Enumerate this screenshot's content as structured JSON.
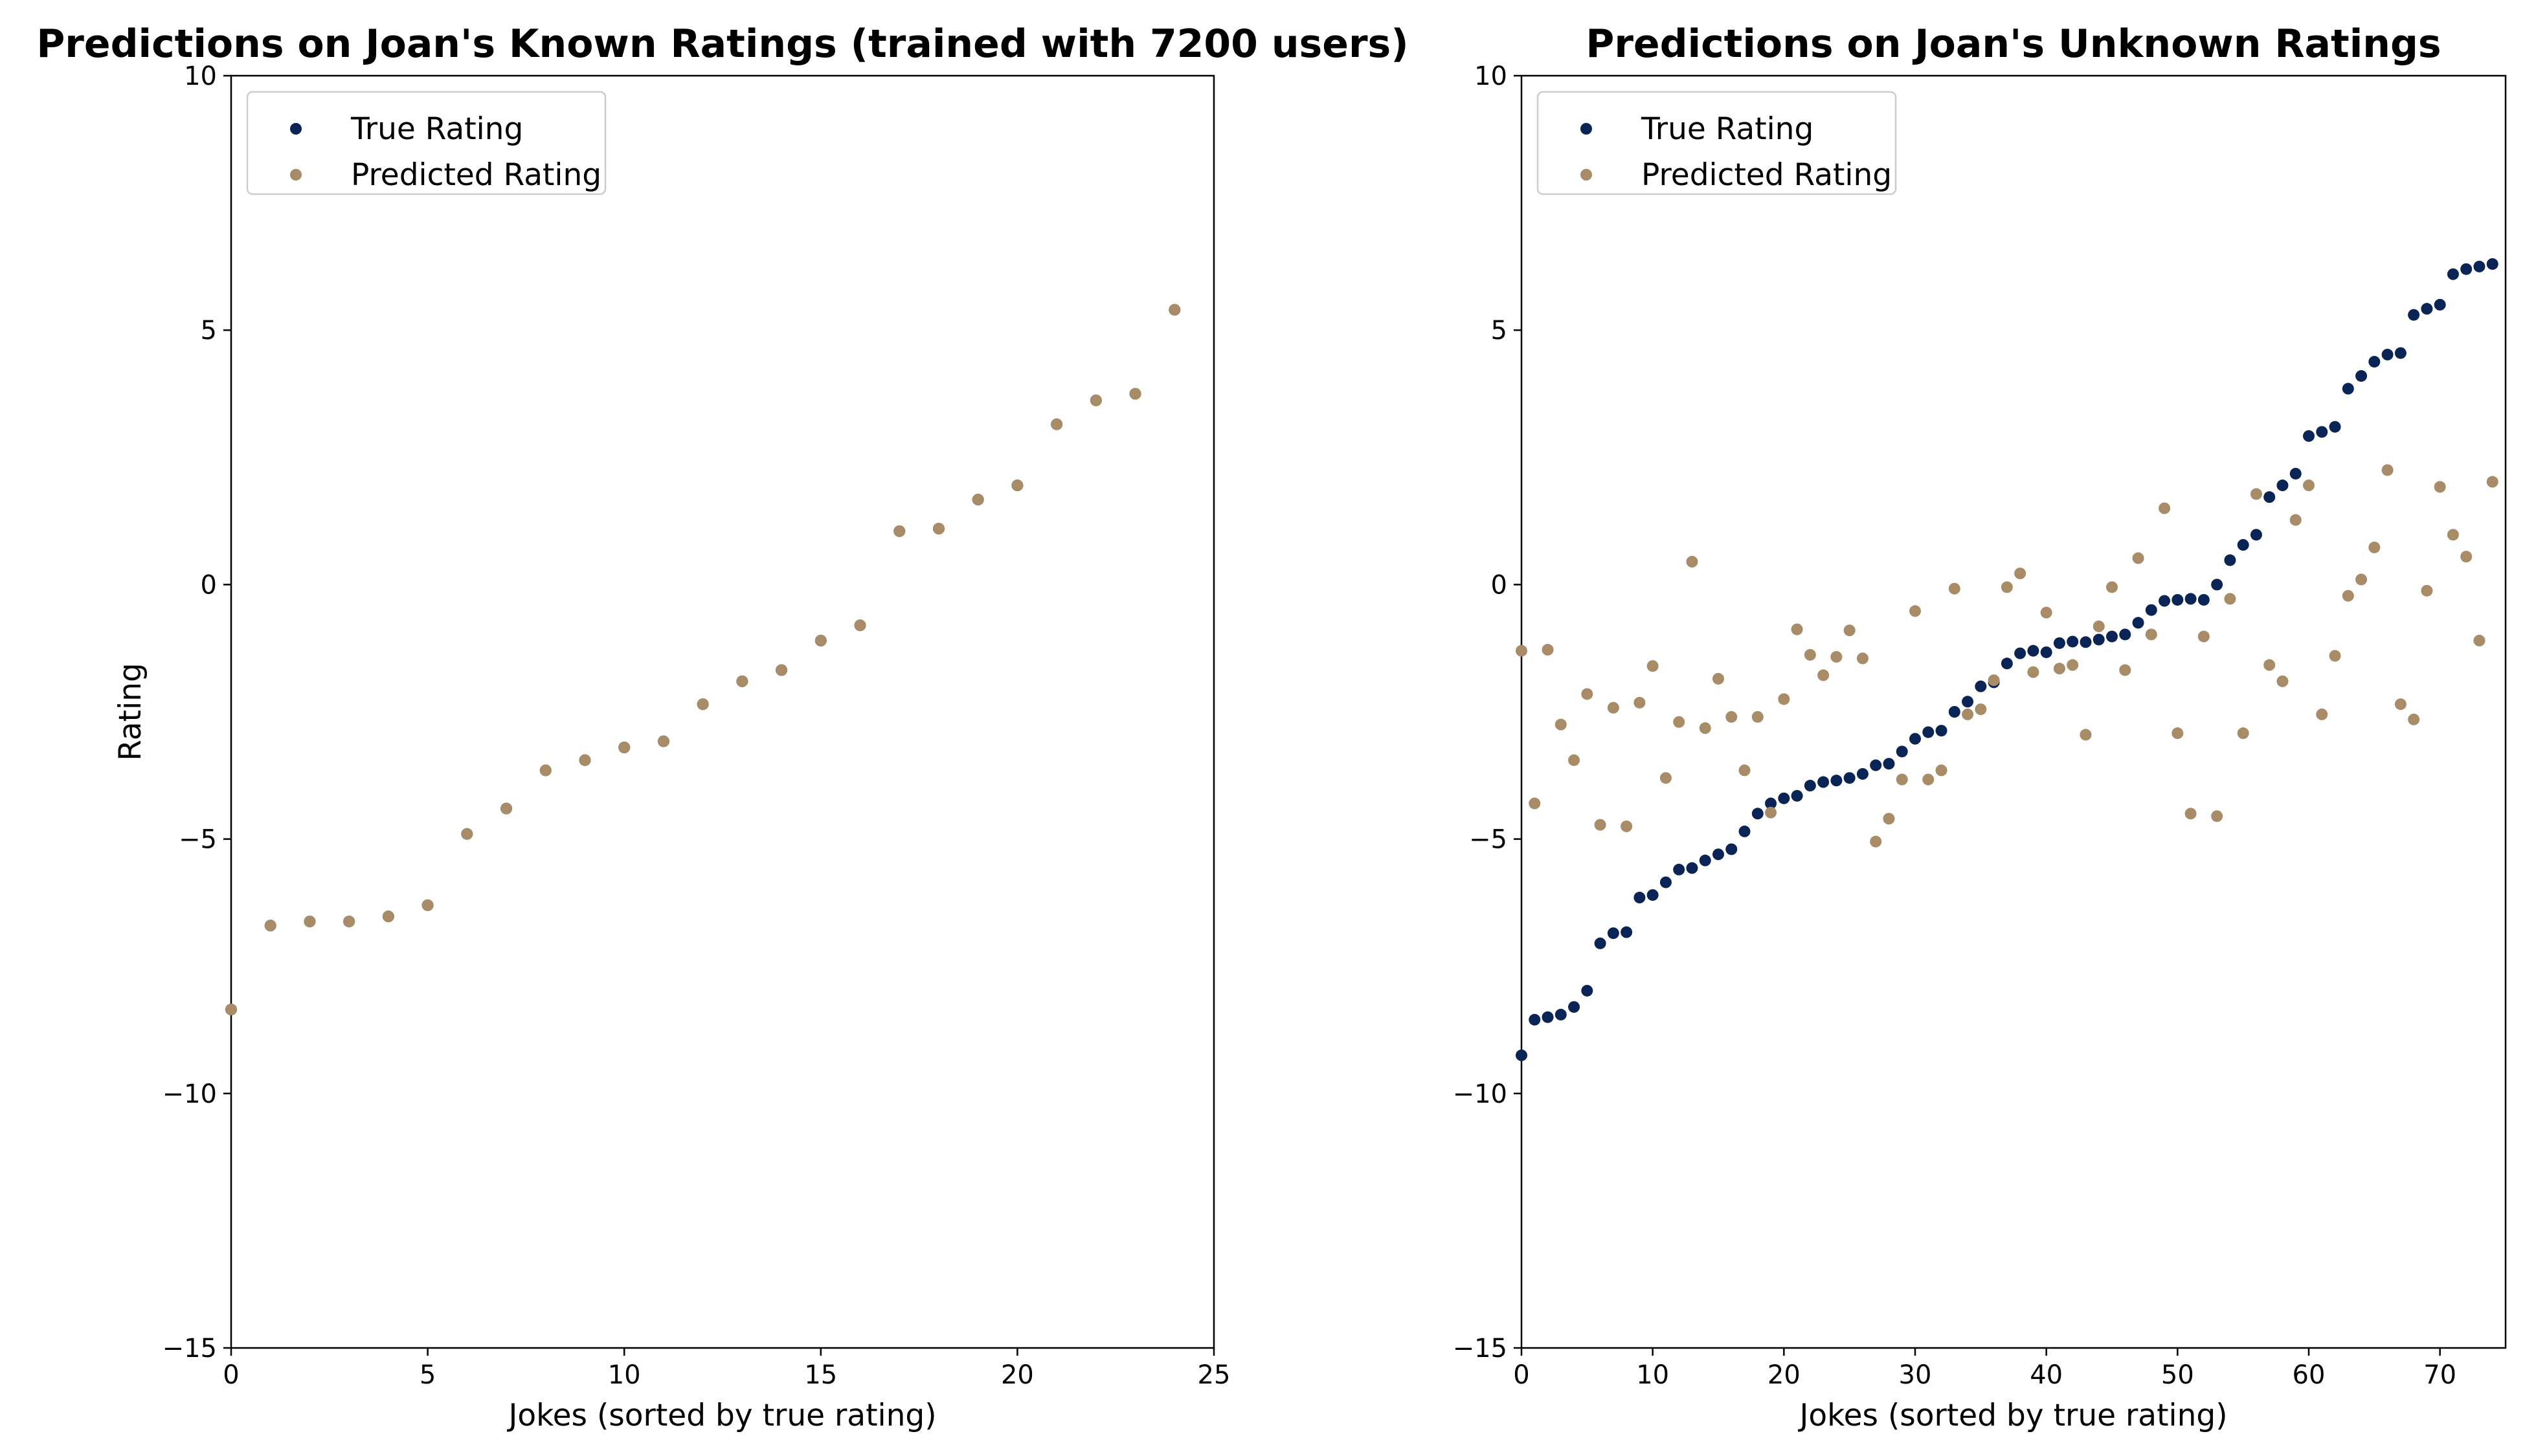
{
  "colors": {
    "true_rating": "#0a2456",
    "predicted_rating": "#a88b67",
    "axes": "#000000",
    "legend_border": "#cccccc"
  },
  "chart_data": [
    {
      "type": "scatter",
      "title": "Predictions on Joan's Known Ratings (trained with 7200 users)",
      "xlabel": "Jokes (sorted by true rating)",
      "ylabel": "Rating",
      "xlim": [
        0,
        25
      ],
      "ylim": [
        -15,
        10
      ],
      "xticks": [
        0,
        5,
        10,
        15,
        20,
        25
      ],
      "yticks": [
        -15,
        -10,
        -5,
        0,
        5,
        10
      ],
      "grid": false,
      "legend": "top-left",
      "series": [
        {
          "name": "True Rating",
          "color": "#0a2456",
          "x": [
            0,
            1,
            2,
            3,
            4,
            5,
            6,
            7,
            8,
            9,
            10,
            11,
            12,
            13,
            14,
            15,
            16,
            17,
            18,
            19,
            20,
            21,
            22,
            23,
            24
          ],
          "y": [
            -8.35,
            -6.7,
            -6.62,
            -6.62,
            -6.52,
            -6.3,
            -4.9,
            -4.4,
            -3.65,
            -3.45,
            -3.2,
            -3.08,
            -2.35,
            -1.9,
            -1.68,
            -1.1,
            -0.8,
            1.05,
            1.1,
            1.67,
            1.95,
            3.15,
            3.62,
            3.75,
            5.4
          ]
        },
        {
          "name": "Predicted Rating",
          "color": "#a88b67",
          "x": [
            0,
            1,
            2,
            3,
            4,
            5,
            6,
            7,
            8,
            9,
            10,
            11,
            12,
            13,
            14,
            15,
            16,
            17,
            18,
            19,
            20,
            21,
            22,
            23,
            24
          ],
          "y": [
            -8.35,
            -6.7,
            -6.62,
            -6.62,
            -6.52,
            -6.3,
            -4.9,
            -4.4,
            -3.65,
            -3.45,
            -3.2,
            -3.08,
            -2.35,
            -1.9,
            -1.68,
            -1.1,
            -0.8,
            1.05,
            1.1,
            1.67,
            1.95,
            3.15,
            3.62,
            3.75,
            5.4
          ]
        }
      ]
    },
    {
      "type": "scatter",
      "title": "Predictions on Joan's Unknown Ratings",
      "xlabel": "Jokes (sorted by true rating)",
      "ylabel": "",
      "xlim": [
        0,
        75
      ],
      "ylim": [
        -15,
        10
      ],
      "xticks": [
        0,
        10,
        20,
        30,
        40,
        50,
        60,
        70
      ],
      "yticks": [
        -15,
        -10,
        -5,
        0,
        5,
        10
      ],
      "grid": false,
      "legend": "top-left",
      "series": [
        {
          "name": "True Rating",
          "color": "#0a2456",
          "x": [
            0,
            1,
            2,
            3,
            4,
            5,
            6,
            7,
            8,
            9,
            10,
            11,
            12,
            13,
            14,
            15,
            16,
            17,
            18,
            19,
            20,
            21,
            22,
            23,
            24,
            25,
            26,
            27,
            28,
            29,
            30,
            31,
            32,
            33,
            34,
            35,
            36,
            37,
            38,
            39,
            40,
            41,
            42,
            43,
            44,
            45,
            46,
            47,
            48,
            49,
            50,
            51,
            52,
            53,
            54,
            55,
            56,
            57,
            58,
            59,
            60,
            61,
            62,
            63,
            64,
            65,
            66,
            67,
            68,
            69,
            70,
            71,
            72,
            73,
            74
          ],
          "y": [
            -9.25,
            -8.55,
            -8.5,
            -8.45,
            -8.3,
            -7.98,
            -7.05,
            -6.85,
            -6.83,
            -6.15,
            -6.1,
            -5.85,
            -5.6,
            -5.57,
            -5.42,
            -5.3,
            -5.2,
            -4.85,
            -4.5,
            -4.3,
            -4.2,
            -4.15,
            -3.95,
            -3.88,
            -3.85,
            -3.8,
            -3.72,
            -3.55,
            -3.52,
            -3.28,
            -3.03,
            -2.9,
            -2.87,
            -2.5,
            -2.3,
            -2.0,
            -1.92,
            -1.55,
            -1.35,
            -1.3,
            -1.33,
            -1.15,
            -1.12,
            -1.13,
            -1.08,
            -1.02,
            -0.98,
            -0.75,
            -0.5,
            -0.32,
            -0.3,
            -0.28,
            -0.3,
            0.0,
            0.48,
            0.78,
            0.98,
            1.72,
            1.95,
            2.18,
            2.92,
            3.0,
            3.1,
            3.85,
            4.1,
            4.38,
            4.52,
            4.55,
            5.3,
            5.42,
            5.5,
            6.1,
            6.2,
            6.25,
            6.3
          ]
        },
        {
          "name": "Predicted Rating",
          "color": "#a88b67",
          "x": [
            0,
            1,
            2,
            3,
            4,
            5,
            6,
            7,
            8,
            9,
            10,
            11,
            12,
            13,
            14,
            15,
            16,
            17,
            18,
            19,
            20,
            21,
            22,
            23,
            24,
            25,
            26,
            27,
            28,
            29,
            30,
            31,
            32,
            33,
            34,
            35,
            36,
            37,
            38,
            39,
            40,
            41,
            42,
            43,
            44,
            45,
            46,
            47,
            48,
            49,
            50,
            51,
            52,
            53,
            54,
            55,
            56,
            57,
            58,
            59,
            60,
            61,
            62,
            63,
            64,
            65,
            66,
            67,
            68,
            69,
            70,
            71,
            72,
            73,
            74
          ],
          "y": [
            -1.3,
            -4.3,
            -1.28,
            -2.75,
            -3.45,
            -2.15,
            -4.72,
            -2.42,
            -4.75,
            -2.32,
            -1.6,
            -3.8,
            -2.7,
            0.45,
            -2.82,
            -1.85,
            -2.6,
            -3.65,
            -2.6,
            -4.48,
            -2.25,
            -0.88,
            -1.38,
            -1.78,
            -1.42,
            -0.9,
            -1.45,
            -5.05,
            -4.6,
            -3.83,
            -0.52,
            -3.83,
            -3.65,
            -0.08,
            -2.55,
            -2.45,
            -1.88,
            -0.05,
            0.22,
            -1.72,
            -0.55,
            -1.65,
            -1.58,
            -2.95,
            -0.82,
            -0.05,
            -1.68,
            0.52,
            -0.98,
            1.5,
            -2.92,
            -4.5,
            -1.02,
            -4.55,
            -0.28,
            -2.92,
            1.78,
            -1.58,
            -1.9,
            1.27,
            1.95,
            -2.55,
            -1.4,
            -0.22,
            0.1,
            0.73,
            2.25,
            -2.35,
            -2.65,
            -0.12,
            1.92,
            0.98,
            0.55,
            -1.1,
            2.02
          ]
        }
      ]
    }
  ]
}
